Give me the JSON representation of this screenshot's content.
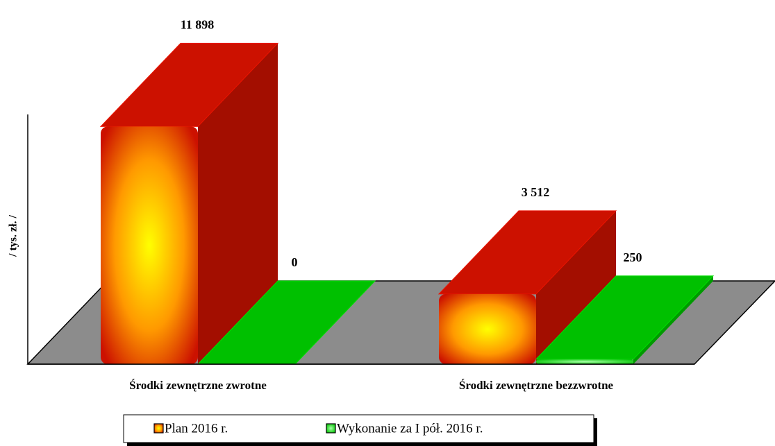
{
  "chart_data": {
    "type": "bar3d",
    "y_label": "/ tys. zł. /",
    "categories": [
      "Środki zewnętrzne zwrotne",
      "Środki zewnętrzne bezzwrotne"
    ],
    "series": [
      {
        "name": "Plan 2016 r.",
        "color": "#cc1100",
        "values": [
          11898,
          3512
        ],
        "value_labels": [
          "11 898",
          "3 512"
        ]
      },
      {
        "name": "Wykonanie za I pół. 2016 r.",
        "color": "#00c000",
        "values": [
          0,
          250
        ],
        "value_labels": [
          "0",
          "250"
        ]
      }
    ],
    "ylim": [
      0,
      12500
    ]
  }
}
